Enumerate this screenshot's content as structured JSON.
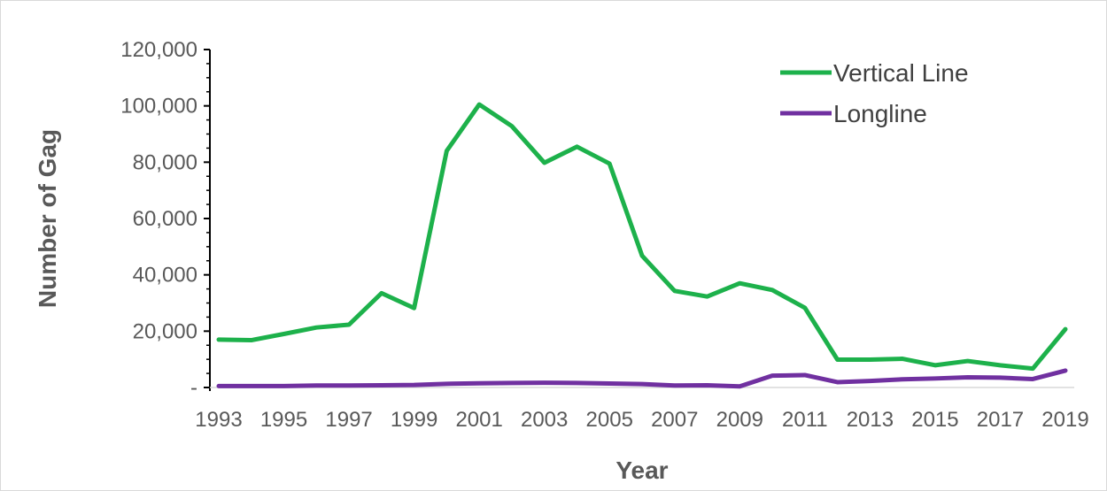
{
  "chart_data": {
    "type": "line",
    "title": "",
    "xlabel": "Year",
    "ylabel": "Number of Gag",
    "x": [
      1993,
      1994,
      1995,
      1996,
      1997,
      1998,
      1999,
      2000,
      2001,
      2002,
      2003,
      2004,
      2005,
      2006,
      2007,
      2008,
      2009,
      2010,
      2011,
      2012,
      2013,
      2014,
      2015,
      2016,
      2017,
      2018,
      2019
    ],
    "x_tick_labels": [
      "1993",
      "1995",
      "1997",
      "1999",
      "2001",
      "2003",
      "2005",
      "2007",
      "2009",
      "2011",
      "2013",
      "2015",
      "2017",
      "2019"
    ],
    "y_tick_labels": [
      "-",
      "20,000",
      "40,000",
      "60,000",
      "80,000",
      "100,000",
      "120,000"
    ],
    "ylim": [
      0,
      120000
    ],
    "grid": false,
    "legend_position": "top-right",
    "series": [
      {
        "name": "Vertical Line",
        "color": "#1db14b",
        "values": [
          17000,
          16800,
          19000,
          21300,
          22300,
          33500,
          28200,
          84000,
          100500,
          92800,
          79800,
          85500,
          79500,
          46800,
          34300,
          32300,
          37000,
          34600,
          28300,
          9900,
          9900,
          10200,
          7900,
          9400,
          7900,
          6700,
          20700
        ]
      },
      {
        "name": "Longline",
        "color": "#7030a0",
        "values": [
          500,
          500,
          500,
          700,
          700,
          800,
          900,
          1300,
          1500,
          1600,
          1700,
          1600,
          1400,
          1200,
          700,
          800,
          400,
          4200,
          4400,
          1900,
          2300,
          2900,
          3200,
          3600,
          3500,
          3000,
          6000
        ]
      }
    ]
  }
}
